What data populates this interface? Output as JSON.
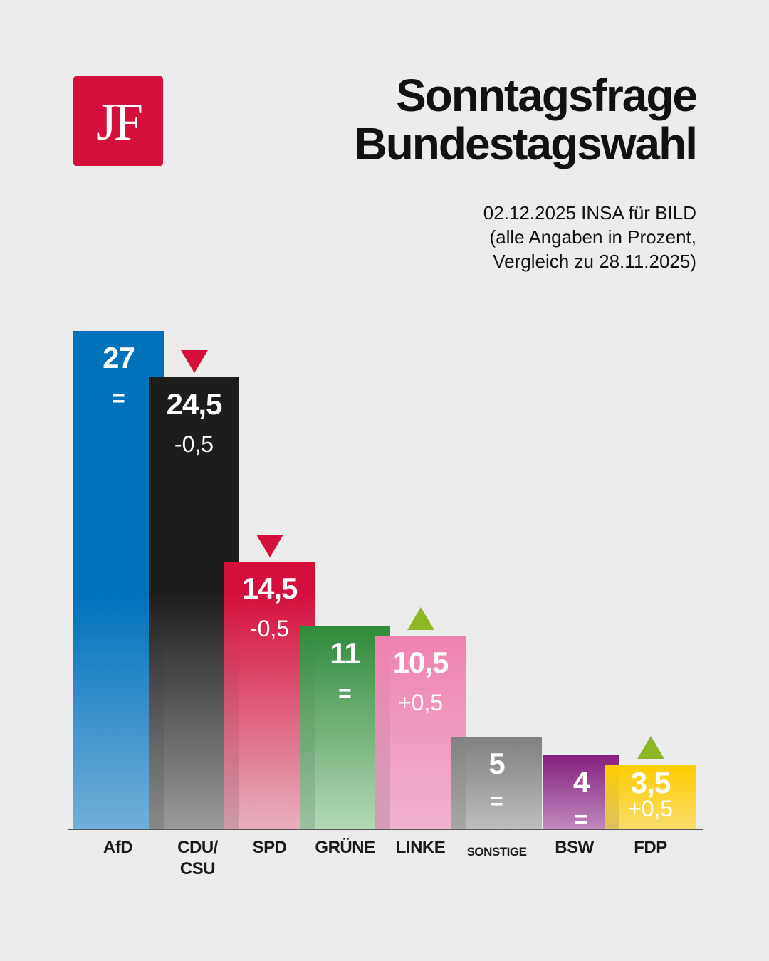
{
  "logo": {
    "text": "JF",
    "color": "#d50f3c"
  },
  "header": {
    "title_line1": "Sonntagsfrage",
    "title_line2": "Bundestagswahl",
    "subtitle_line1": "02.12.2025 INSA für BILD",
    "subtitle_line2": "(alle Angaben in Prozent,",
    "subtitle_line3": "Vergleich zu 28.11.2025)"
  },
  "chart_data": {
    "type": "bar",
    "title": "Sonntagsfrage Bundestagswahl",
    "subtitle": "02.12.2025 INSA für BILD (alle Angaben in Prozent, Vergleich zu 28.11.2025)",
    "xlabel": "",
    "ylabel": "Prozent",
    "ylim": [
      0,
      27
    ],
    "grid": false,
    "categories": [
      "AfD",
      "CDU/\nCSU",
      "SPD",
      "GRÜNE",
      "LINKE",
      "SONSTIGE",
      "BSW",
      "FDP"
    ],
    "values": [
      27,
      24.5,
      14.5,
      11,
      10.5,
      5,
      4,
      3.5
    ],
    "value_labels": [
      "27",
      "24,5",
      "14,5",
      "11",
      "10,5",
      "5",
      "4",
      "3,5"
    ],
    "changes": [
      0,
      -0.5,
      -0.5,
      0,
      0.5,
      0,
      0,
      0.5
    ],
    "change_labels": [
      "=",
      "-0,5",
      "-0,5",
      "=",
      "+0,5",
      "=",
      "=",
      "+0,5"
    ],
    "trend": [
      "none",
      "down",
      "down",
      "none",
      "up",
      "none",
      "none",
      "up"
    ],
    "colors": [
      "#0072bc",
      "#1d1d1b",
      "#d50f3c",
      "#2e8b3a",
      "#ef82b0",
      "#808080",
      "#861f80",
      "#ffcc00"
    ],
    "colors_bottom": [
      "#72afd9",
      "#9b9b9b",
      "#e8b0bf",
      "#b4d8b8",
      "#f0b2cf",
      "#bdbdbd",
      "#c089bd",
      "#f9dc6a"
    ],
    "trend_colors": {
      "down": "#d50f3c",
      "up": "#8cb723"
    }
  }
}
